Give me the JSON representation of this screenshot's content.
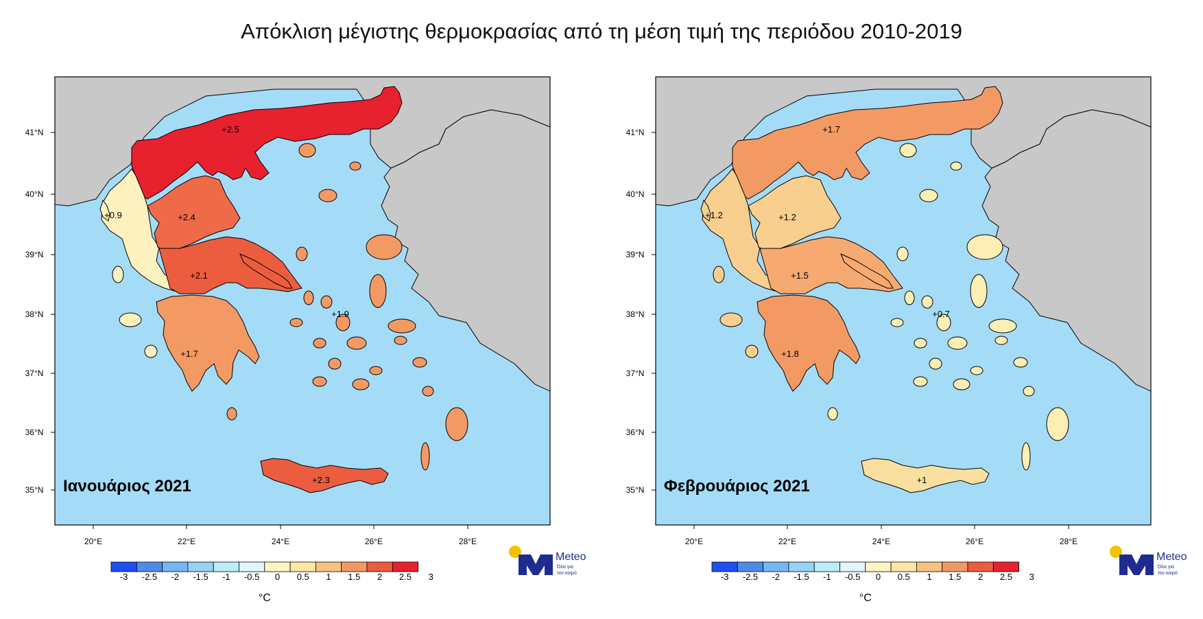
{
  "title": "Απόκλιση μέγιστης θερμοκρασίας από τη μέση τιμή της περιόδου 2010-2019",
  "colorbar": {
    "labels": [
      "-3",
      "-2.5",
      "-2",
      "-1.5",
      "-1",
      "-0.5",
      "0",
      "0.5",
      "1",
      "1.5",
      "2",
      "2.5",
      "3"
    ],
    "colors": [
      "#1f4ff0",
      "#4d8de8",
      "#74b7f2",
      "#98d3f5",
      "#bdebf7",
      "#e1f7fb",
      "#ffffff",
      "#fff6c6",
      "#fde6a6",
      "#f6c482",
      "#f39a64",
      "#ec5d40",
      "#e8212e"
    ],
    "unit": "°C"
  },
  "axes": {
    "lon_labels": [
      "20°E",
      "22°E",
      "24°E",
      "26°E",
      "28°E"
    ],
    "lat_labels": [
      "41°N",
      "40°N",
      "39°N",
      "38°N",
      "37°N",
      "36°N",
      "35°N"
    ]
  },
  "colors": {
    "sea": "#a4dcf8",
    "land_other": "#c8c8c8",
    "logo_blue": "#1f2c8f",
    "logo_sun": "#f3c200"
  },
  "logo": {
    "name": "Meteo",
    "tagline1": "Όλα για",
    "tagline2": "τον καιρό"
  },
  "maps": [
    {
      "month": "Ιανουάριος 2021",
      "regions": {
        "thrace_macedonia": {
          "value": "+2.5",
          "color": "#e8212e"
        },
        "epirus": {
          "value": "+0.9",
          "color": "#fdf1bf"
        },
        "thessaly": {
          "value": "+2.4",
          "color": "#ef6a48"
        },
        "central": {
          "value": "+2.1",
          "color": "#ec5d40"
        },
        "peloponnese": {
          "value": "+1.7",
          "color": "#f39a64"
        },
        "aegean": {
          "value": "+1.9",
          "color": "#f39a64"
        },
        "crete": {
          "value": "+2.3",
          "color": "#ec5d40"
        }
      }
    },
    {
      "month": "Φεβρουάριος 2021",
      "regions": {
        "thrace_macedonia": {
          "value": "+1.7",
          "color": "#f39a64"
        },
        "epirus": {
          "value": "+1.2",
          "color": "#f8cf8e"
        },
        "thessaly": {
          "value": "+1.2",
          "color": "#f8cf8e"
        },
        "central": {
          "value": "+1.5",
          "color": "#f6aa72"
        },
        "peloponnese": {
          "value": "+1.8",
          "color": "#f39a64"
        },
        "aegean": {
          "value": "+0.7",
          "color": "#fdeeb4"
        },
        "crete": {
          "value": "+1",
          "color": "#fae0a0"
        }
      }
    }
  ]
}
